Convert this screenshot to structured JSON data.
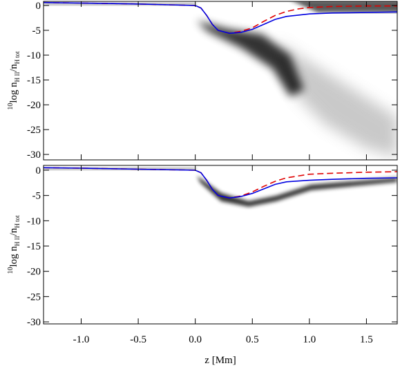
{
  "chart_data": [
    {
      "type": "line",
      "ylabel": {
        "sup": "10",
        "base": "log n",
        "sub1": "H II",
        "mid": "/n",
        "sub2": "H tot"
      },
      "xlim": [
        -1.33,
        1.77
      ],
      "ylim": [
        -31.1,
        0.83
      ],
      "xticks": [
        -1,
        -0.5,
        0,
        0.5,
        1,
        1.5
      ],
      "yticks": [
        0,
        -5,
        -10,
        -15,
        -20,
        -25,
        -30
      ],
      "series": [
        {
          "color": "#e00000",
          "dash": true,
          "x": [
            -1.33,
            -1.0,
            -0.5,
            0.0,
            0.05,
            0.1,
            0.15,
            0.2,
            0.3,
            0.4,
            0.5,
            0.6,
            0.7,
            0.8,
            0.9,
            1.0,
            1.2,
            1.5,
            1.77
          ],
          "values": [
            0.6,
            0.5,
            0.3,
            0.0,
            -0.5,
            -2.0,
            -3.8,
            -5.0,
            -5.6,
            -5.2,
            -4.5,
            -3.2,
            -2.0,
            -1.2,
            -0.7,
            -0.4,
            -0.2,
            -0.1,
            -0.1
          ]
        },
        {
          "color": "#0000e0",
          "dash": false,
          "x": [
            -1.33,
            -1.0,
            -0.5,
            0.0,
            0.05,
            0.1,
            0.15,
            0.2,
            0.3,
            0.4,
            0.5,
            0.6,
            0.7,
            0.8,
            1.0,
            1.2,
            1.5,
            1.77
          ],
          "values": [
            0.6,
            0.5,
            0.3,
            0.0,
            -0.5,
            -2.0,
            -3.8,
            -5.0,
            -5.6,
            -5.4,
            -4.8,
            -3.8,
            -2.8,
            -2.2,
            -1.7,
            -1.5,
            -1.4,
            -1.3
          ]
        }
      ]
    },
    {
      "type": "line",
      "ylabel": {
        "sup": "10",
        "base": "log n",
        "sub1": "H II",
        "mid": "/n",
        "sub2": "H tot"
      },
      "xlabel": "z [Mm]",
      "xlim": [
        -1.33,
        1.77
      ],
      "ylim": [
        -30.4,
        0.95
      ],
      "xticks": [
        {
          "value": -1,
          "label": "-1.0"
        },
        -0.5,
        {
          "value": 0,
          "label": "0.0"
        },
        0.5,
        {
          "value": 1,
          "label": "1.0"
        },
        1.5
      ],
      "yticks": [
        0,
        -5,
        -10,
        -15,
        -20,
        -25,
        -30
      ],
      "series": [
        {
          "color": "#e00000",
          "dash": true,
          "x": [
            -1.33,
            -1.0,
            -0.5,
            0.0,
            0.05,
            0.1,
            0.15,
            0.2,
            0.3,
            0.4,
            0.5,
            0.6,
            0.7,
            0.8,
            1.0,
            1.2,
            1.5,
            1.77
          ],
          "values": [
            0.5,
            0.4,
            0.2,
            0.0,
            -0.5,
            -2.0,
            -3.8,
            -5.0,
            -5.5,
            -5.1,
            -4.3,
            -3.2,
            -2.2,
            -1.5,
            -0.8,
            -0.6,
            -0.4,
            -0.3
          ]
        },
        {
          "color": "#0000e0",
          "dash": false,
          "x": [
            -1.33,
            -1.0,
            -0.5,
            0.0,
            0.05,
            0.1,
            0.15,
            0.2,
            0.3,
            0.4,
            0.5,
            0.6,
            0.7,
            0.8,
            1.0,
            1.2,
            1.5,
            1.77
          ],
          "values": [
            0.5,
            0.4,
            0.2,
            0.0,
            -0.5,
            -2.0,
            -3.8,
            -5.0,
            -5.5,
            -5.2,
            -4.6,
            -3.7,
            -2.8,
            -2.3,
            -2.0,
            -1.8,
            -1.6,
            -1.5
          ]
        }
      ]
    }
  ]
}
